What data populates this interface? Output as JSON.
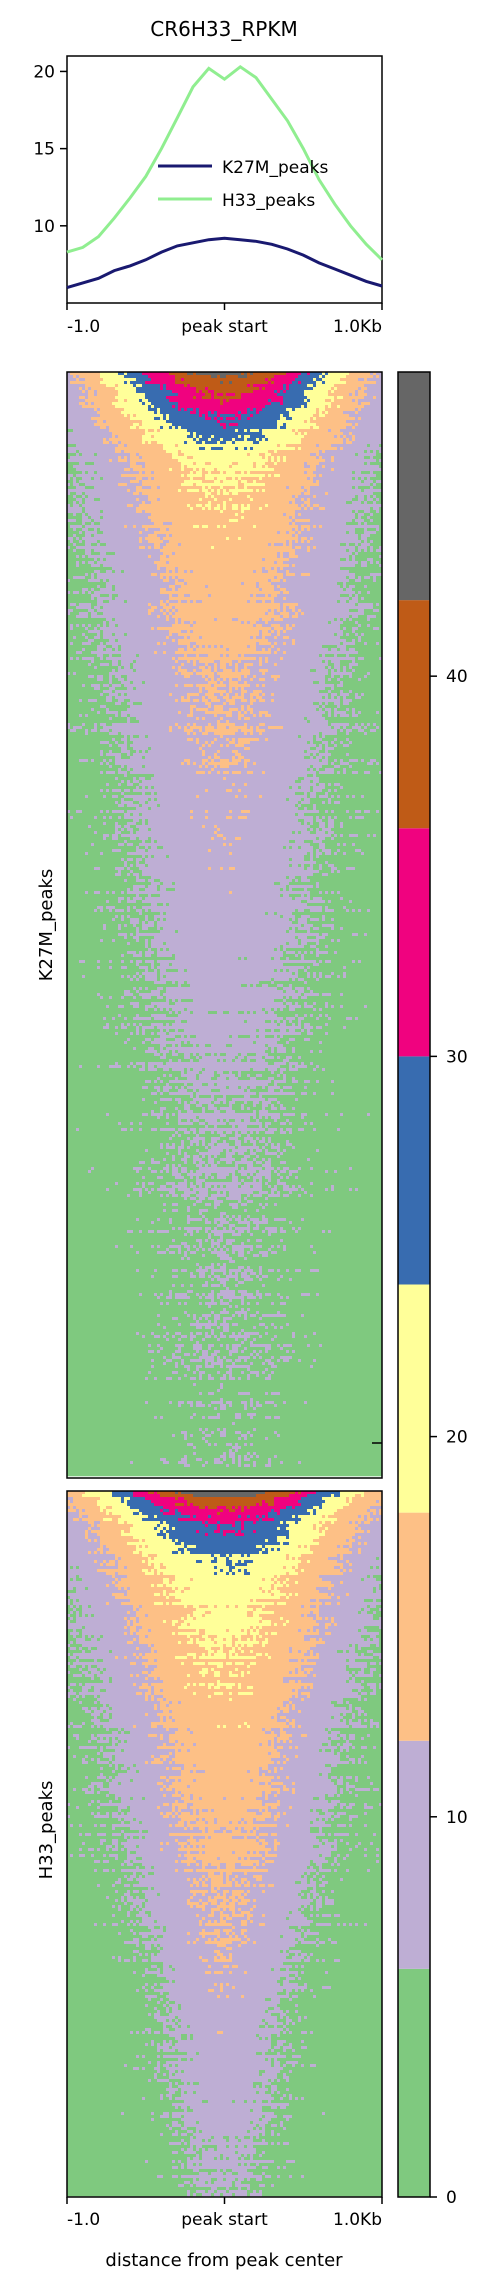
{
  "title": "CR6H33_RPKM",
  "profile": {
    "yticks": [
      "10",
      "15",
      "20"
    ],
    "xticks": [
      "-1.0",
      "peak start",
      "1.0Kb"
    ],
    "legend": [
      "K27M_peaks",
      "H33_peaks"
    ]
  },
  "heatmaps": [
    {
      "ylabel": "K27M_peaks",
      "xticks": []
    },
    {
      "ylabel": "H33_peaks",
      "xticks": [
        "-1.0",
        "peak start",
        "1.0Kb"
      ],
      "xlabel": "distance from peak center"
    }
  ],
  "colorbar": {
    "ticks": [
      "0",
      "10",
      "20",
      "30",
      "40"
    ]
  },
  "chart_data": [
    {
      "type": "line",
      "title": "CR6H33_RPKM",
      "xlabel": "",
      "ylabel": "",
      "x_ticklabels": [
        "-1.0",
        "peak start",
        "1.0Kb"
      ],
      "x": [
        -1.0,
        -0.9,
        -0.8,
        -0.7,
        -0.6,
        -0.5,
        -0.4,
        -0.3,
        -0.2,
        -0.1,
        0.0,
        0.1,
        0.2,
        0.3,
        0.4,
        0.5,
        0.6,
        0.7,
        0.8,
        0.9,
        1.0
      ],
      "ylim": [
        5,
        21
      ],
      "legend": "center-right",
      "series": [
        {
          "name": "K27M_peaks",
          "color": "#191970",
          "values": [
            6.0,
            6.3,
            6.6,
            7.1,
            7.4,
            7.8,
            8.3,
            8.7,
            8.9,
            9.1,
            9.2,
            9.1,
            9.0,
            8.8,
            8.5,
            8.1,
            7.6,
            7.2,
            6.8,
            6.4,
            6.1
          ]
        },
        {
          "name": "H33_peaks",
          "color": "#90ee90",
          "values": [
            8.3,
            8.6,
            9.3,
            10.5,
            11.8,
            13.2,
            15.0,
            17.0,
            19.0,
            20.2,
            19.5,
            20.3,
            19.6,
            18.2,
            16.8,
            15.0,
            13.0,
            11.4,
            10.0,
            8.8,
            7.8
          ]
        }
      ]
    },
    {
      "type": "heatmap",
      "name": "K27M_peaks",
      "x_ticklabels": [],
      "description_values": "per-row RPKM, highest at center, decreasing down rows",
      "center_profile": [
        44,
        40,
        35,
        30,
        24,
        20,
        17,
        15,
        13,
        12,
        11,
        10,
        9,
        8,
        7,
        6,
        5
      ],
      "row_fraction": [
        0.0,
        0.01,
        0.025,
        0.04,
        0.06,
        0.08,
        0.12,
        0.18,
        0.26,
        0.32,
        0.38,
        0.46,
        0.52,
        0.6,
        0.66,
        0.8,
        1.0
      ]
    },
    {
      "type": "heatmap",
      "name": "H33_peaks",
      "x_ticklabels": [
        "-1.0",
        "peak start",
        "1.0Kb"
      ],
      "xlabel": "distance from peak center",
      "center_profile": [
        46,
        40,
        34,
        30,
        26,
        22,
        20,
        18,
        16,
        14,
        12,
        10,
        9,
        8,
        7
      ],
      "row_fraction": [
        0.0,
        0.01,
        0.03,
        0.05,
        0.08,
        0.12,
        0.17,
        0.25,
        0.33,
        0.45,
        0.62,
        0.75,
        0.85,
        0.93,
        1.0
      ]
    },
    {
      "type": "colorbar",
      "range": [
        0,
        48
      ],
      "bins": [
        {
          "from": 0,
          "to": 6,
          "color": "#7fc97f"
        },
        {
          "from": 6,
          "to": 12,
          "color": "#beaed4"
        },
        {
          "from": 12,
          "to": 18,
          "color": "#fdc086"
        },
        {
          "from": 18,
          "to": 24,
          "color": "#ffff99"
        },
        {
          "from": 24,
          "to": 30,
          "color": "#386cb0"
        },
        {
          "from": 30,
          "to": 36,
          "color": "#f0027f"
        },
        {
          "from": 36,
          "to": 42,
          "color": "#bf5b17"
        },
        {
          "from": 42,
          "to": 48,
          "color": "#666666"
        }
      ]
    }
  ]
}
